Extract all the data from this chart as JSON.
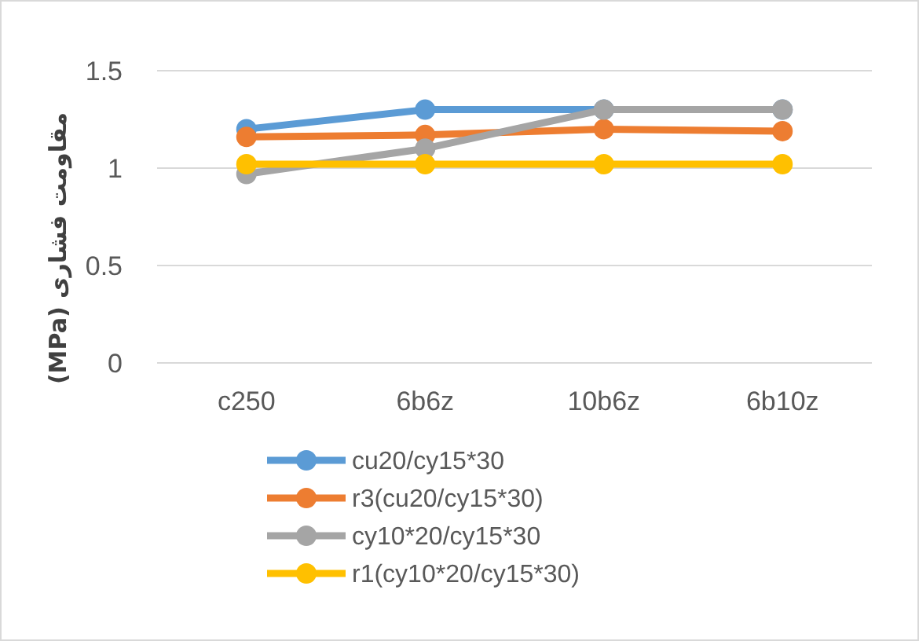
{
  "chart_data": {
    "type": "line",
    "ylabel": "مقاومت فشاری (MPa)",
    "categories": [
      "c250",
      "6b6z",
      "10b6z",
      "6b10z"
    ],
    "series": [
      {
        "name": "cu20/cy15*30",
        "color": "#5b9bd5",
        "values": [
          1.2,
          1.3,
          1.3,
          1.3
        ]
      },
      {
        "name": "r3(cu20/cy15*30)",
        "color": "#ed7d31",
        "values": [
          1.16,
          1.17,
          1.2,
          1.19
        ]
      },
      {
        "name": "cy10*20/cy15*30",
        "color": "#a5a5a5",
        "values": [
          0.97,
          1.1,
          1.3,
          1.3
        ]
      },
      {
        "name": "r1(cy10*20/cy15*30)",
        "color": "#ffc000",
        "values": [
          1.02,
          1.02,
          1.02,
          1.02
        ]
      }
    ],
    "ylim": [
      0,
      1.5
    ],
    "yticks": [
      0,
      0.5,
      1,
      1.5
    ],
    "grid": "y",
    "legend": "bottom",
    "marker": "circle",
    "line_style": "solid"
  }
}
